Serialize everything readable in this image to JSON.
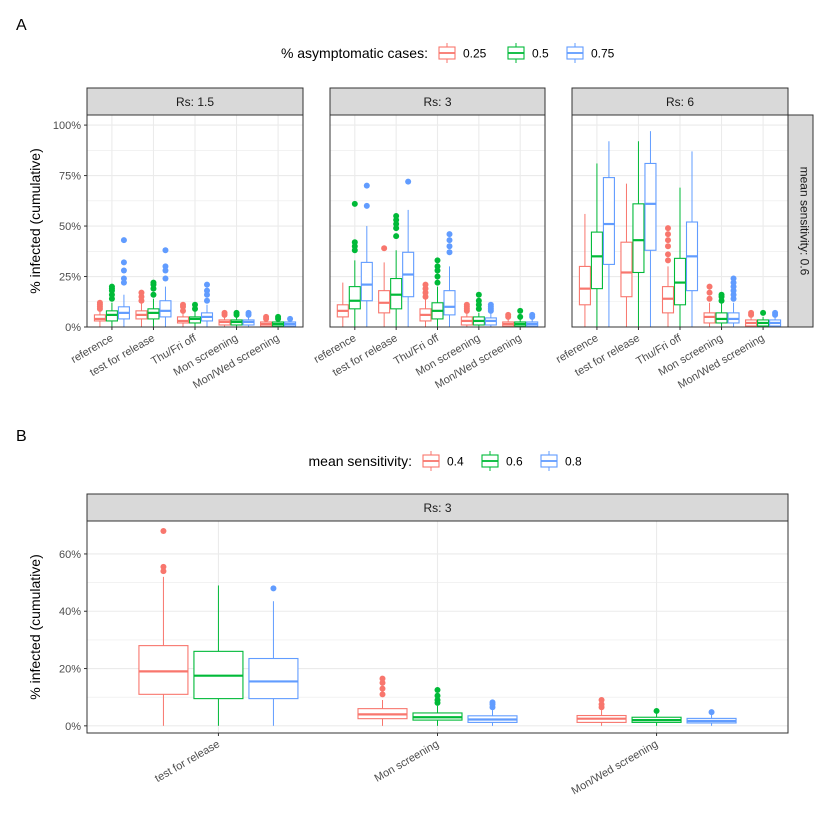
{
  "figure": {
    "panel_a_label": "A",
    "panel_b_label": "B"
  },
  "colors": {
    "series_1": "#F8766D",
    "series_2": "#00BA38",
    "series_3": "#619CFF",
    "strip_fill": "#D9D9D9",
    "grid": "#EBEBEB",
    "axis_text": "#4D4D4D"
  },
  "chart_data": [
    {
      "type": "boxplot",
      "panel": "A",
      "legend_title": "% asymptomatic cases:",
      "legend_labels": [
        "0.25",
        "0.5",
        "0.75"
      ],
      "ylabel": "% infected (cumulative)",
      "ylim": [
        0,
        1.05
      ],
      "yticks": [
        0,
        0.25,
        0.5,
        0.75,
        1.0
      ],
      "ytick_labels": [
        "0%",
        "25%",
        "50%",
        "75%",
        "100%"
      ],
      "categories": [
        "reference",
        "test for release",
        "Thu/Fri off",
        "Mon screening",
        "Mon/Wed screening"
      ],
      "row_strip": "mean sensitivity: 0.6",
      "facets": [
        {
          "title": "Rs: 1.5",
          "boxes": [
            [
              {
                "q1": 0.03,
                "med": 0.04,
                "q3": 0.06,
                "lo": 0.0,
                "hi": 0.08,
                "out": [
                  0.09,
                  0.1,
                  0.11,
                  0.12
                ]
              },
              {
                "q1": 0.03,
                "med": 0.06,
                "q3": 0.08,
                "lo": 0.0,
                "hi": 0.12,
                "out": [
                  0.14,
                  0.16,
                  0.18,
                  0.19,
                  0.2
                ]
              },
              {
                "q1": 0.04,
                "med": 0.07,
                "q3": 0.1,
                "lo": 0.0,
                "hi": 0.16,
                "out": [
                  0.22,
                  0.24,
                  0.28,
                  0.32,
                  0.43
                ]
              }
            ],
            [
              {
                "q1": 0.04,
                "med": 0.06,
                "q3": 0.08,
                "lo": 0.0,
                "hi": 0.12,
                "out": [
                  0.13,
                  0.15,
                  0.17
                ]
              },
              {
                "q1": 0.04,
                "med": 0.07,
                "q3": 0.09,
                "lo": 0.0,
                "hi": 0.14,
                "out": [
                  0.16,
                  0.19,
                  0.21,
                  0.22
                ]
              },
              {
                "q1": 0.05,
                "med": 0.08,
                "q3": 0.13,
                "lo": 0.0,
                "hi": 0.2,
                "out": [
                  0.24,
                  0.28,
                  0.3,
                  0.38
                ]
              }
            ],
            [
              {
                "q1": 0.02,
                "med": 0.03,
                "q3": 0.05,
                "lo": 0.0,
                "hi": 0.07,
                "out": [
                  0.08,
                  0.1,
                  0.11
                ]
              },
              {
                "q1": 0.02,
                "med": 0.04,
                "q3": 0.05,
                "lo": 0.0,
                "hi": 0.08,
                "out": [
                  0.09,
                  0.11
                ]
              },
              {
                "q1": 0.03,
                "med": 0.05,
                "q3": 0.07,
                "lo": 0.0,
                "hi": 0.11,
                "out": [
                  0.13,
                  0.16,
                  0.18,
                  0.21
                ]
              }
            ],
            [
              {
                "q1": 0.01,
                "med": 0.025,
                "q3": 0.035,
                "lo": 0.0,
                "hi": 0.05,
                "out": [
                  0.06,
                  0.07
                ]
              },
              {
                "q1": 0.01,
                "med": 0.025,
                "q3": 0.035,
                "lo": 0.0,
                "hi": 0.05,
                "out": [
                  0.06,
                  0.07
                ]
              },
              {
                "q1": 0.01,
                "med": 0.025,
                "q3": 0.035,
                "lo": 0.0,
                "hi": 0.05,
                "out": [
                  0.06,
                  0.07
                ]
              }
            ],
            [
              {
                "q1": 0.005,
                "med": 0.015,
                "q3": 0.025,
                "lo": 0.0,
                "hi": 0.035,
                "out": [
                  0.04,
                  0.05
                ]
              },
              {
                "q1": 0.005,
                "med": 0.015,
                "q3": 0.025,
                "lo": 0.0,
                "hi": 0.035,
                "out": [
                  0.04,
                  0.05
                ]
              },
              {
                "q1": 0.005,
                "med": 0.015,
                "q3": 0.025,
                "lo": 0.0,
                "hi": 0.03,
                "out": [
                  0.04
                ]
              }
            ]
          ]
        },
        {
          "title": "Rs: 3",
          "boxes": [
            [
              {
                "q1": 0.05,
                "med": 0.08,
                "q3": 0.11,
                "lo": 0.0,
                "hi": 0.22,
                "out": []
              },
              {
                "q1": 0.09,
                "med": 0.13,
                "q3": 0.2,
                "lo": 0.0,
                "hi": 0.33,
                "out": [
                  0.38,
                  0.4,
                  0.42,
                  0.61
                ]
              },
              {
                "q1": 0.13,
                "med": 0.21,
                "q3": 0.32,
                "lo": 0.0,
                "hi": 0.5,
                "out": [
                  0.6,
                  0.7
                ]
              }
            ],
            [
              {
                "q1": 0.07,
                "med": 0.12,
                "q3": 0.18,
                "lo": 0.0,
                "hi": 0.32,
                "out": [
                  0.39
                ]
              },
              {
                "q1": 0.09,
                "med": 0.16,
                "q3": 0.24,
                "lo": 0.0,
                "hi": 0.38,
                "out": [
                  0.45,
                  0.49,
                  0.51,
                  0.53,
                  0.55
                ]
              },
              {
                "q1": 0.15,
                "med": 0.26,
                "q3": 0.37,
                "lo": 0.0,
                "hi": 0.58,
                "out": [
                  0.72
                ]
              }
            ],
            [
              {
                "q1": 0.03,
                "med": 0.06,
                "q3": 0.09,
                "lo": 0.0,
                "hi": 0.14,
                "out": [
                  0.15,
                  0.17,
                  0.19,
                  0.21
                ]
              },
              {
                "q1": 0.04,
                "med": 0.08,
                "q3": 0.12,
                "lo": 0.0,
                "hi": 0.2,
                "out": [
                  0.22,
                  0.25,
                  0.28,
                  0.3,
                  0.33
                ]
              },
              {
                "q1": 0.06,
                "med": 0.1,
                "q3": 0.18,
                "lo": 0.0,
                "hi": 0.3,
                "out": [
                  0.37,
                  0.4,
                  0.43,
                  0.46
                ]
              }
            ],
            [
              {
                "q1": 0.01,
                "med": 0.03,
                "q3": 0.05,
                "lo": 0.0,
                "hi": 0.07,
                "out": [
                  0.08,
                  0.09,
                  0.1,
                  0.11
                ]
              },
              {
                "q1": 0.01,
                "med": 0.03,
                "q3": 0.05,
                "lo": 0.0,
                "hi": 0.07,
                "out": [
                  0.09,
                  0.11,
                  0.13,
                  0.16
                ]
              },
              {
                "q1": 0.01,
                "med": 0.03,
                "q3": 0.045,
                "lo": 0.0,
                "hi": 0.07,
                "out": [
                  0.08,
                  0.09,
                  0.1,
                  0.11
                ]
              }
            ],
            [
              {
                "q1": 0.005,
                "med": 0.015,
                "q3": 0.025,
                "lo": 0.0,
                "hi": 0.04,
                "out": [
                  0.05,
                  0.06
                ]
              },
              {
                "q1": 0.005,
                "med": 0.015,
                "q3": 0.025,
                "lo": 0.0,
                "hi": 0.04,
                "out": [
                  0.05,
                  0.08
                ]
              },
              {
                "q1": 0.005,
                "med": 0.015,
                "q3": 0.025,
                "lo": 0.0,
                "hi": 0.04,
                "out": [
                  0.05,
                  0.06
                ]
              }
            ]
          ]
        },
        {
          "title": "Rs: 6",
          "boxes": [
            [
              {
                "q1": 0.11,
                "med": 0.19,
                "q3": 0.3,
                "lo": 0.0,
                "hi": 0.56,
                "out": []
              },
              {
                "q1": 0.19,
                "med": 0.35,
                "q3": 0.47,
                "lo": 0.0,
                "hi": 0.81,
                "out": []
              },
              {
                "q1": 0.31,
                "med": 0.51,
                "q3": 0.74,
                "lo": 0.0,
                "hi": 0.92,
                "out": []
              }
            ],
            [
              {
                "q1": 0.15,
                "med": 0.27,
                "q3": 0.42,
                "lo": 0.0,
                "hi": 0.71,
                "out": []
              },
              {
                "q1": 0.27,
                "med": 0.43,
                "q3": 0.61,
                "lo": 0.0,
                "hi": 0.92,
                "out": []
              },
              {
                "q1": 0.38,
                "med": 0.61,
                "q3": 0.81,
                "lo": 0.0,
                "hi": 0.97,
                "out": []
              }
            ],
            [
              {
                "q1": 0.07,
                "med": 0.14,
                "q3": 0.2,
                "lo": 0.0,
                "hi": 0.3,
                "out": [
                  0.33,
                  0.36,
                  0.4,
                  0.43,
                  0.46,
                  0.49
                ]
              },
              {
                "q1": 0.11,
                "med": 0.22,
                "q3": 0.34,
                "lo": 0.0,
                "hi": 0.69,
                "out": []
              },
              {
                "q1": 0.18,
                "med": 0.35,
                "q3": 0.52,
                "lo": 0.0,
                "hi": 0.87,
                "out": []
              }
            ],
            [
              {
                "q1": 0.02,
                "med": 0.05,
                "q3": 0.07,
                "lo": 0.0,
                "hi": 0.12,
                "out": [
                  0.14,
                  0.17,
                  0.2
                ]
              },
              {
                "q1": 0.02,
                "med": 0.04,
                "q3": 0.07,
                "lo": 0.0,
                "hi": 0.12,
                "out": [
                  0.13,
                  0.15,
                  0.16
                ]
              },
              {
                "q1": 0.02,
                "med": 0.04,
                "q3": 0.07,
                "lo": 0.0,
                "hi": 0.12,
                "out": [
                  0.14,
                  0.16,
                  0.18,
                  0.2,
                  0.22,
                  0.24
                ]
              }
            ],
            [
              {
                "q1": 0.005,
                "med": 0.02,
                "q3": 0.035,
                "lo": 0.0,
                "hi": 0.05,
                "out": [
                  0.06,
                  0.07
                ]
              },
              {
                "q1": 0.005,
                "med": 0.02,
                "q3": 0.035,
                "lo": 0.0,
                "hi": 0.05,
                "out": [
                  0.07
                ]
              },
              {
                "q1": 0.005,
                "med": 0.02,
                "q3": 0.035,
                "lo": 0.0,
                "hi": 0.05,
                "out": [
                  0.06,
                  0.07
                ]
              }
            ]
          ]
        }
      ]
    },
    {
      "type": "boxplot",
      "panel": "B",
      "legend_title": "mean sensitivity:",
      "legend_labels": [
        "0.4",
        "0.6",
        "0.8"
      ],
      "ylabel": "% infected (cumulative)",
      "ylim": [
        -0.025,
        0.715
      ],
      "yticks": [
        0,
        0.2,
        0.4,
        0.6
      ],
      "ytick_labels": [
        "0%",
        "20%",
        "40%",
        "60%"
      ],
      "categories": [
        "test for release",
        "Mon screening",
        "Mon/Wed screening"
      ],
      "facets": [
        {
          "title": "Rs: 3",
          "boxes": [
            [
              {
                "q1": 0.11,
                "med": 0.19,
                "q3": 0.28,
                "lo": 0.0,
                "hi": 0.52,
                "out": [
                  0.54,
                  0.555,
                  0.68
                ]
              },
              {
                "q1": 0.095,
                "med": 0.175,
                "q3": 0.26,
                "lo": 0.0,
                "hi": 0.49,
                "out": []
              },
              {
                "q1": 0.095,
                "med": 0.155,
                "q3": 0.235,
                "lo": 0.0,
                "hi": 0.435,
                "out": [
                  0.48
                ]
              }
            ],
            [
              {
                "q1": 0.025,
                "med": 0.04,
                "q3": 0.06,
                "lo": 0.0,
                "hi": 0.09,
                "out": [
                  0.11,
                  0.13,
                  0.15,
                  0.165
                ]
              },
              {
                "q1": 0.02,
                "med": 0.03,
                "q3": 0.045,
                "lo": 0.0,
                "hi": 0.07,
                "out": [
                  0.08,
                  0.09,
                  0.105,
                  0.125
                ]
              },
              {
                "q1": 0.012,
                "med": 0.022,
                "q3": 0.035,
                "lo": 0.0,
                "hi": 0.055,
                "out": [
                  0.065,
                  0.075,
                  0.082
                ]
              }
            ],
            [
              {
                "q1": 0.012,
                "med": 0.025,
                "q3": 0.036,
                "lo": 0.0,
                "hi": 0.055,
                "out": [
                  0.065,
                  0.075,
                  0.09
                ]
              },
              {
                "q1": 0.012,
                "med": 0.02,
                "q3": 0.03,
                "lo": 0.0,
                "hi": 0.045,
                "out": [
                  0.052
                ]
              },
              {
                "q1": 0.01,
                "med": 0.017,
                "q3": 0.026,
                "lo": 0.0,
                "hi": 0.04,
                "out": [
                  0.048
                ]
              }
            ]
          ]
        }
      ]
    }
  ]
}
